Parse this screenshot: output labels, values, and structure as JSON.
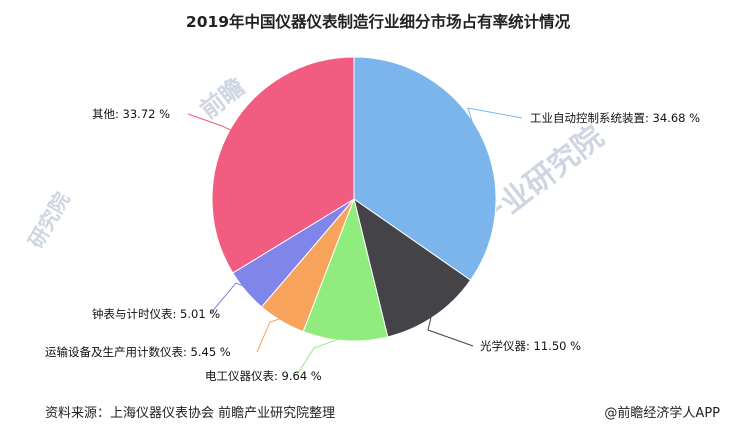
{
  "chart_data": {
    "type": "pie",
    "title": "2019年中国仪器仪表制造行业细分市场占有率统计情况",
    "unit": "%",
    "slices": [
      {
        "label": "工业自动控制系统装置",
        "value": 34.68,
        "color": "#7cb4ec",
        "text": "工业自动控制系统装置: 34.68 %"
      },
      {
        "label": "光学仪器",
        "value": 11.5,
        "color": "#434348",
        "text": "光学仪器: 11.50 %"
      },
      {
        "label": "电工仪器仪表",
        "value": 9.64,
        "color": "#90ed7d",
        "text": "电工仪器仪表: 9.64 %"
      },
      {
        "label": "运输设备及生产用计数仪表",
        "value": 5.45,
        "color": "#f7a35c",
        "text": "运输设备及生产用计数仪表: 5.45 %"
      },
      {
        "label": "钟表与计时仪表",
        "value": 5.01,
        "color": "#8085e9",
        "text": "钟表与计时仪表: 5.01 %"
      },
      {
        "label": "其他",
        "value": 33.72,
        "color": "#f15c80",
        "text": "其他: 33.72 %"
      }
    ]
  },
  "footer": {
    "source": "资料来源：上海仪器仪表协会 前瞻产业研究院整理",
    "brand": "@前瞻经济学人APP"
  }
}
